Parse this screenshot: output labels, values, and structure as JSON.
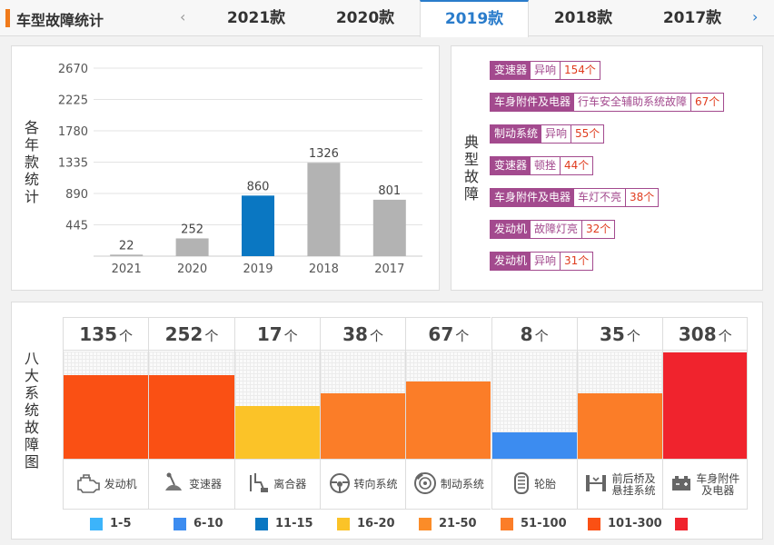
{
  "header": {
    "title": "车型故障统计",
    "tabs": [
      {
        "label": "2021款",
        "active": false
      },
      {
        "label": "2020款",
        "active": false
      },
      {
        "label": "2019款",
        "active": true
      },
      {
        "label": "2018款",
        "active": false
      },
      {
        "label": "2017款",
        "active": false
      }
    ],
    "prev_arrow": "‹",
    "next_arrow": "›"
  },
  "yearly_chart": {
    "vertical_label": [
      "各",
      "年",
      "款",
      "统",
      "计"
    ],
    "chart_data": {
      "type": "bar",
      "categories": [
        "2021",
        "2020",
        "2019",
        "2018",
        "2017"
      ],
      "values": [
        22,
        252,
        860,
        1326,
        801
      ],
      "highlight": "2019",
      "y_ticks": [
        "2670",
        "2225",
        "1780",
        "1335",
        "890",
        "445"
      ],
      "ylim": [
        0,
        2670
      ],
      "colors": {
        "default": "#b3b3b3",
        "highlight": "#0a77c2"
      }
    }
  },
  "typical_faults": {
    "vertical_label": [
      "典",
      "型",
      "故",
      "障"
    ],
    "items": [
      {
        "system": "变速器",
        "desc": "异响",
        "count": "154个"
      },
      {
        "system": "车身附件及电器",
        "desc": "行车安全辅助系统故障",
        "count": "67个"
      },
      {
        "system": "制动系统",
        "desc": "异响",
        "count": "55个"
      },
      {
        "system": "变速器",
        "desc": "顿挫",
        "count": "44个"
      },
      {
        "system": "车身附件及电器",
        "desc": "车灯不亮",
        "count": "38个"
      },
      {
        "system": "发动机",
        "desc": "故障灯亮",
        "count": "32个"
      },
      {
        "system": "发动机",
        "desc": "异响",
        "count": "31个"
      }
    ]
  },
  "systems": {
    "vertical_label": [
      "八",
      "大",
      "系",
      "统",
      "故",
      "障",
      "图"
    ],
    "unit": "个",
    "items": [
      {
        "name": [
          "发动机"
        ],
        "count": "135",
        "level": 0.78,
        "color": "#fa5014",
        "icon": "engine-icon"
      },
      {
        "name": [
          "变速器"
        ],
        "count": "252",
        "level": 0.78,
        "color": "#fa5014",
        "icon": "gearbox-icon"
      },
      {
        "name": [
          "离合器"
        ],
        "count": "17",
        "level": 0.49,
        "color": "#fbc328",
        "icon": "clutch-icon"
      },
      {
        "name": [
          "转向系统"
        ],
        "count": "38",
        "level": 0.61,
        "color": "#fb7d28",
        "icon": "steering-icon"
      },
      {
        "name": [
          "制动系统"
        ],
        "count": "67",
        "level": 0.72,
        "color": "#fb7d28",
        "icon": "brake-icon"
      },
      {
        "name": [
          "轮胎"
        ],
        "count": "8",
        "level": 0.25,
        "color": "#3c8cf0",
        "icon": "tire-icon"
      },
      {
        "name": [
          "前后桥及",
          "悬挂系统"
        ],
        "count": "35",
        "level": 0.61,
        "color": "#fb7d28",
        "icon": "suspension-icon"
      },
      {
        "name": [
          "车身附件",
          "及电器"
        ],
        "count": "308",
        "level": 0.99,
        "color": "#f0232d",
        "icon": "battery-icon"
      }
    ]
  },
  "legend": [
    {
      "label": "1-5",
      "color": "#3cb4fa"
    },
    {
      "label": "6-10",
      "color": "#3c8cf0"
    },
    {
      "label": "11-15",
      "color": "#0a77c2"
    },
    {
      "label": "16-20",
      "color": "#fbc328"
    },
    {
      "label": "21-50",
      "color": "#fb8c28"
    },
    {
      "label": "51-100",
      "color": "#fb7d28"
    },
    {
      "label": "101-300",
      "color": "#fa5014"
    },
    {
      "label": "",
      "color": "#f0232d"
    }
  ]
}
